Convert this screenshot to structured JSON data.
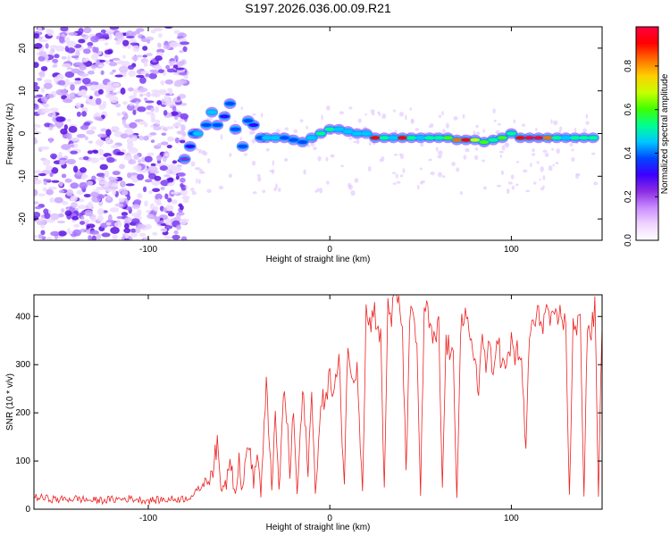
{
  "title": "S197.2026.036.00.09.R21",
  "chart_data": [
    {
      "type": "heatmap",
      "name": "spectrogram",
      "xlabel": "Height of straight line (km)",
      "ylabel": "Frequency (Hz)",
      "xlim": [
        -163,
        150
      ],
      "ylim": [
        -25,
        25
      ],
      "xticks": [
        -100,
        0,
        100
      ],
      "yticks": [
        -20,
        -10,
        0,
        10,
        20
      ],
      "colorbar": {
        "label": "Normalized spectral amplitude",
        "range": [
          0,
          0.98
        ],
        "ticks": [
          0.0,
          0.2,
          0.4,
          0.6,
          0.8
        ],
        "tick_labels": [
          "0.0",
          "0.2",
          "0.4",
          "0.6",
          "0.8"
        ],
        "colors": [
          "#ffffff",
          "#f0d4ff",
          "#c98cff",
          "#8a2be2",
          "#3b00ff",
          "#0048ff",
          "#00c8ff",
          "#00ff90",
          "#40ff00",
          "#c8ff00",
          "#ffd000",
          "#ff7000",
          "#ff0000",
          "#ff0040"
        ]
      },
      "signal_track": [
        {
          "x": -80,
          "f": -6,
          "a": 0.25
        },
        {
          "x": -77,
          "f": -3,
          "a": 0.3
        },
        {
          "x": -75,
          "f": 0,
          "a": 0.35
        },
        {
          "x": -73,
          "f": 0,
          "a": 0.45
        },
        {
          "x": -68,
          "f": 2,
          "a": 0.4
        },
        {
          "x": -65,
          "f": 5,
          "a": 0.45
        },
        {
          "x": -62,
          "f": 2,
          "a": 0.35
        },
        {
          "x": -58,
          "f": 4,
          "a": 0.3
        },
        {
          "x": -55,
          "f": 7,
          "a": 0.35
        },
        {
          "x": -52,
          "f": 1,
          "a": 0.35
        },
        {
          "x": -48,
          "f": -3,
          "a": 0.4
        },
        {
          "x": -45,
          "f": 3,
          "a": 0.35
        },
        {
          "x": -42,
          "f": 2,
          "a": 0.3
        },
        {
          "x": -38,
          "f": -1,
          "a": 0.35
        },
        {
          "x": -35,
          "f": -1,
          "a": 0.45
        },
        {
          "x": -30,
          "f": -1,
          "a": 0.45
        },
        {
          "x": -25,
          "f": -1,
          "a": 0.4
        },
        {
          "x": -20,
          "f": -1.5,
          "a": 0.4
        },
        {
          "x": -15,
          "f": -2,
          "a": 0.4
        },
        {
          "x": -10,
          "f": -1,
          "a": 0.45
        },
        {
          "x": -5,
          "f": 0,
          "a": 0.55
        },
        {
          "x": 0,
          "f": 1,
          "a": 0.5
        },
        {
          "x": 5,
          "f": 1,
          "a": 0.45
        },
        {
          "x": 10,
          "f": 0.5,
          "a": 0.45
        },
        {
          "x": 15,
          "f": 0,
          "a": 0.45
        },
        {
          "x": 20,
          "f": 0,
          "a": 0.45
        },
        {
          "x": 25,
          "f": -1,
          "a": 0.9
        },
        {
          "x": 30,
          "f": -1,
          "a": 0.5
        },
        {
          "x": 35,
          "f": -1,
          "a": 0.45
        },
        {
          "x": 40,
          "f": -1,
          "a": 0.9
        },
        {
          "x": 45,
          "f": -1,
          "a": 0.55
        },
        {
          "x": 50,
          "f": -1,
          "a": 0.45
        },
        {
          "x": 55,
          "f": -1,
          "a": 0.5
        },
        {
          "x": 60,
          "f": -1,
          "a": 0.55
        },
        {
          "x": 65,
          "f": -1,
          "a": 0.6
        },
        {
          "x": 70,
          "f": -1.5,
          "a": 0.85
        },
        {
          "x": 75,
          "f": -1.5,
          "a": 0.9
        },
        {
          "x": 80,
          "f": -1.5,
          "a": 0.7
        },
        {
          "x": 85,
          "f": -2,
          "a": 0.6
        },
        {
          "x": 90,
          "f": -1.5,
          "a": 0.55
        },
        {
          "x": 95,
          "f": -1,
          "a": 0.6
        },
        {
          "x": 100,
          "f": 0,
          "a": 0.55
        },
        {
          "x": 105,
          "f": -1,
          "a": 0.9
        },
        {
          "x": 110,
          "f": -1,
          "a": 0.95
        },
        {
          "x": 115,
          "f": -1,
          "a": 0.95
        },
        {
          "x": 120,
          "f": -1,
          "a": 0.85
        },
        {
          "x": 125,
          "f": -1,
          "a": 0.55
        },
        {
          "x": 130,
          "f": -1,
          "a": 0.45
        },
        {
          "x": 135,
          "f": -1,
          "a": 0.5
        },
        {
          "x": 140,
          "f": -1,
          "a": 0.55
        },
        {
          "x": 145,
          "f": -1,
          "a": 0.55
        }
      ]
    },
    {
      "type": "line",
      "name": "snr",
      "xlabel": "Height of straight line (km)",
      "ylabel": "SNR (10 * v/v)",
      "xlim": [
        -163,
        150
      ],
      "ylim": [
        0,
        445
      ],
      "xticks": [
        -100,
        0,
        100
      ],
      "yticks": [
        0,
        100,
        200,
        300,
        400
      ],
      "color": "#ee2222",
      "series": [
        {
          "name": "SNR",
          "x": [
            -163,
            -150,
            -140,
            -130,
            -120,
            -110,
            -100,
            -90,
            -80,
            -75,
            -70,
            -65,
            -62,
            -60,
            -57,
            -55,
            -52,
            -50,
            -48,
            -45,
            -42,
            -40,
            -38,
            -35,
            -32,
            -30,
            -28,
            -25,
            -22,
            -20,
            -18,
            -15,
            -12,
            -10,
            -8,
            -5,
            -2,
            0,
            2,
            5,
            8,
            10,
            12,
            15,
            18,
            20,
            22,
            24,
            26,
            28,
            30,
            32,
            34,
            36,
            38,
            40,
            42,
            44,
            46,
            48,
            50,
            52,
            54,
            56,
            58,
            60,
            62,
            64,
            66,
            68,
            70,
            72,
            74,
            76,
            78,
            80,
            82,
            84,
            86,
            88,
            90,
            92,
            94,
            96,
            98,
            100,
            102,
            105,
            108,
            110,
            112,
            115,
            118,
            120,
            122,
            125,
            128,
            130,
            132,
            134,
            136,
            138,
            140,
            142,
            144,
            146,
            148,
            150
          ],
          "values": [
            25,
            20,
            22,
            18,
            20,
            22,
            18,
            20,
            22,
            30,
            50,
            80,
            130,
            40,
            60,
            120,
            30,
            100,
            40,
            150,
            50,
            120,
            30,
            250,
            60,
            180,
            40,
            260,
            80,
            200,
            30,
            240,
            90,
            230,
            40,
            200,
            250,
            270,
            240,
            300,
            60,
            360,
            250,
            310,
            40,
            410,
            380,
            420,
            390,
            350,
            40,
            430,
            400,
            440,
            420,
            380,
            60,
            410,
            380,
            340,
            30,
            420,
            400,
            360,
            340,
            380,
            40,
            350,
            330,
            300,
            30,
            380,
            400,
            370,
            330,
            320,
            250,
            360,
            300,
            330,
            270,
            380,
            310,
            290,
            300,
            350,
            320,
            330,
            120,
            370,
            380,
            400,
            390,
            420,
            380,
            390,
            410,
            370,
            30,
            380,
            360,
            410,
            30,
            390,
            360,
            420,
            30,
            380
          ]
        }
      ]
    }
  ]
}
